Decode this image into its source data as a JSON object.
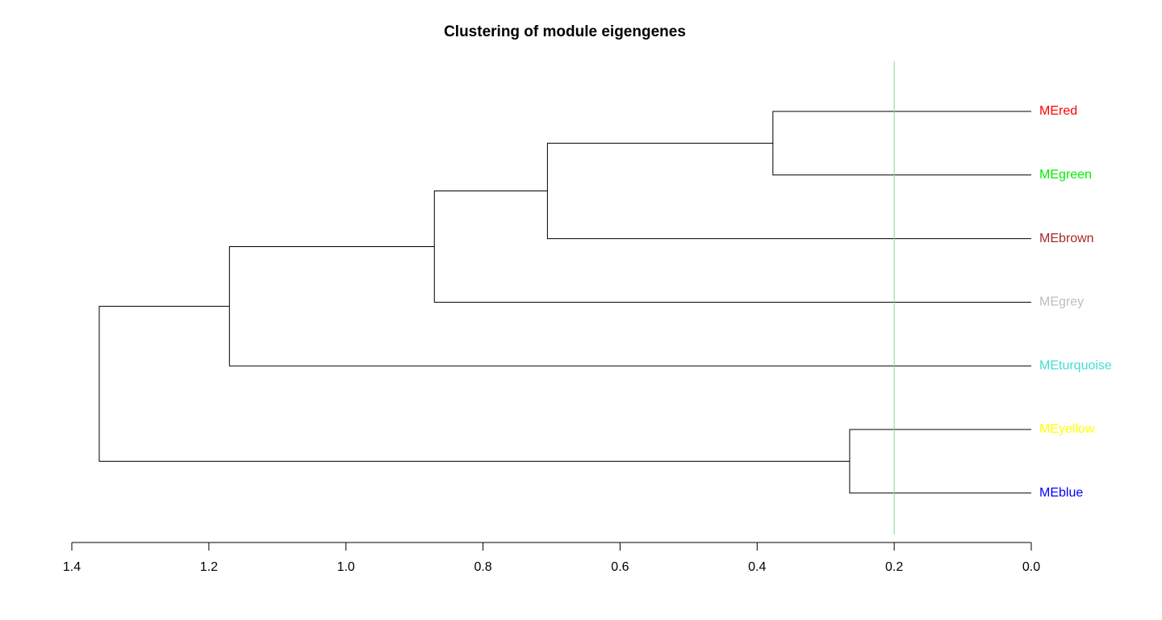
{
  "chart_data": {
    "type": "dendrogram",
    "title": "Clustering of module eigengenes",
    "orientation": "horizontal",
    "xlim": [
      1.4,
      0.0
    ],
    "x_ticks": [
      1.4,
      1.2,
      1.0,
      0.8,
      0.6,
      0.4,
      0.2,
      0.0
    ],
    "x_tick_labels": [
      "1.4",
      "1.2",
      "1.0",
      "0.8",
      "0.6",
      "0.4",
      "0.2",
      "0.0"
    ],
    "leaves": [
      {
        "label": "MEred",
        "color": "#ff0000"
      },
      {
        "label": "MEgreen",
        "color": "#00ee00"
      },
      {
        "label": "MEbrown",
        "color": "#a52a2a"
      },
      {
        "label": "MEgrey",
        "color": "#bebebe"
      },
      {
        "label": "MEturquoise",
        "color": "#40e0d0"
      },
      {
        "label": "MEyellow",
        "color": "#ffff00"
      },
      {
        "label": "MEblue",
        "color": "#0000ff"
      }
    ],
    "merges": [
      {
        "left": "MEred",
        "right": "MEgreen",
        "height": 0.377
      },
      {
        "left": "MEyellow",
        "right": "MEblue",
        "height": 0.265
      },
      {
        "left": "MEred+MEgreen",
        "right": "MEbrown",
        "height": 0.706
      },
      {
        "left": "MEred+MEgreen+MEbrown",
        "right": "MEgrey",
        "height": 0.871
      },
      {
        "left": "MEred+MEgreen+MEbrown+MEgrey",
        "right": "MEturquoise",
        "height": 1.17
      },
      {
        "left": "MEred+MEgreen+MEbrown+MEgrey+MEturquoise",
        "right": "MEyellow+MEblue",
        "height": 1.36
      }
    ],
    "cut_height": 0.2,
    "cut_line_color": "#7fd97f"
  }
}
